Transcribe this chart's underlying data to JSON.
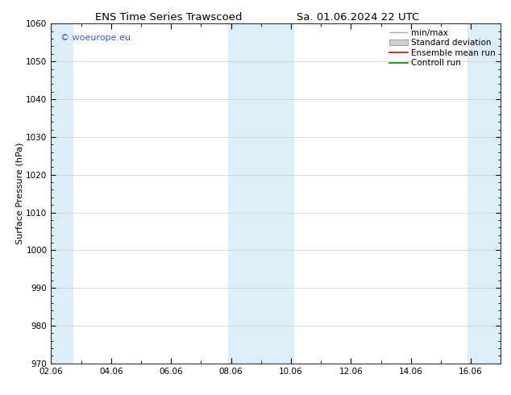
{
  "title_left": "ENS Time Series Trawscoed",
  "title_right": "Sa. 01.06.2024 22 UTC",
  "ylabel": "Surface Pressure (hPa)",
  "ylim": [
    970,
    1060
  ],
  "yticks": [
    970,
    980,
    990,
    1000,
    1010,
    1020,
    1030,
    1040,
    1050,
    1060
  ],
  "xlim_num": [
    0,
    15
  ],
  "xtick_labels": [
    "02.06",
    "04.06",
    "06.06",
    "08.06",
    "10.06",
    "12.06",
    "14.06",
    "16.06"
  ],
  "xtick_positions": [
    0,
    2,
    4,
    6,
    8,
    10,
    12,
    14
  ],
  "shaded_bands": [
    {
      "xmin": 0.0,
      "xmax": 0.75
    },
    {
      "xmin": 5.9,
      "xmax": 8.1
    },
    {
      "xmin": 13.9,
      "xmax": 15.0
    }
  ],
  "shaded_color": "#ddeef8",
  "background_color": "#ffffff",
  "plot_bg_color": "#ffffff",
  "grid_color": "#cccccc",
  "watermark": "© woeurope.eu",
  "watermark_color": "#3a5fcd",
  "legend_items": [
    "min/max",
    "Standard deviation",
    "Ensemble mean run",
    "Controll run"
  ],
  "legend_colors": [
    "#aaaaaa",
    "#cccccc",
    "#cc0000",
    "#008800"
  ],
  "title_fontsize": 9.5,
  "axis_label_fontsize": 8,
  "tick_fontsize": 7.5,
  "legend_fontsize": 7.5,
  "watermark_fontsize": 8
}
